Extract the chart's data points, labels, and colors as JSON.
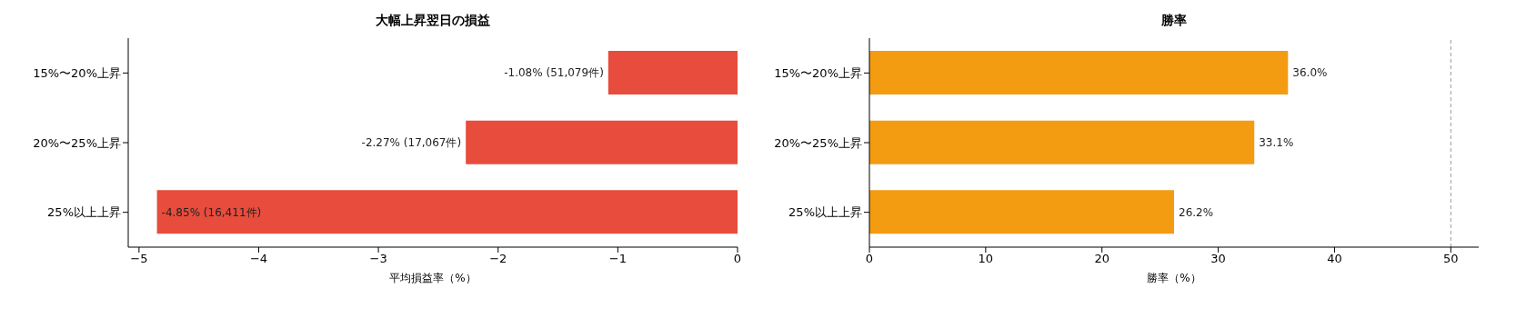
{
  "chart_data": [
    {
      "type": "bar",
      "orientation": "horizontal",
      "title": "大幅上昇翌日の損益",
      "xlabel": "平均損益率（%）",
      "categories": [
        "15%〜20%上昇",
        "20%〜25%上昇",
        "25%以上上昇"
      ],
      "values": [
        -1.08,
        -2.27,
        -4.85
      ],
      "color": "#e74c3c",
      "value_labels": [
        "-1.08% (51,079件)",
        "-2.27% (17,067件)",
        "-4.85% (16,411件)"
      ],
      "xlim": [
        -5.09,
        0
      ],
      "xticks": [
        {
          "value": -5,
          "label": "−5"
        },
        {
          "value": -4,
          "label": "−4"
        },
        {
          "value": -3,
          "label": "−3"
        },
        {
          "value": -2,
          "label": "−2"
        },
        {
          "value": -1,
          "label": "−1"
        },
        0
      ],
      "grid": false,
      "legend": false
    },
    {
      "type": "bar",
      "orientation": "horizontal",
      "title": "勝率",
      "xlabel": "勝率（%）",
      "categories": [
        "15%〜20%上昇",
        "20%〜25%上昇",
        "25%以上上昇"
      ],
      "values": [
        36.0,
        33.1,
        26.2
      ],
      "color": "#f39c12",
      "value_labels": [
        "36.0%",
        "33.1%",
        "26.2%"
      ],
      "xlim": [
        0,
        52.4
      ],
      "xticks": [
        0,
        10,
        20,
        30,
        40,
        50
      ],
      "ref_lines": [
        {
          "axis": "x",
          "value": 50,
          "color": "#999999",
          "line_style": "dashed"
        }
      ],
      "grid": false,
      "legend": false
    }
  ]
}
